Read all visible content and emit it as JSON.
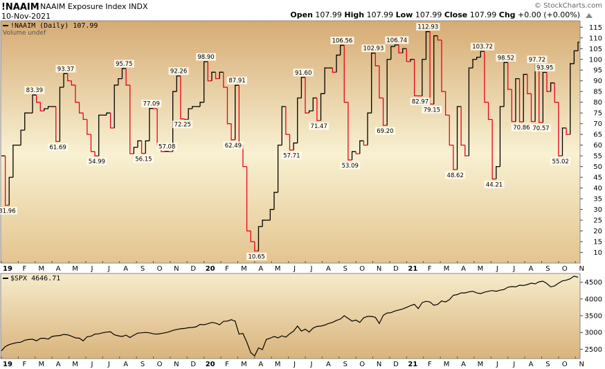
{
  "header": {
    "symbol": "!NAAIM",
    "description": "NAAIM Exposure Index",
    "exchange": "INDX",
    "date": "10-Nov-2021",
    "copyright": "© StockCharts.com",
    "quote": [
      {
        "label": "Open",
        "value": 107.99
      },
      {
        "label": "High",
        "value": 107.99
      },
      {
        "label": "Low",
        "value": 107.99
      },
      {
        "label": "Close",
        "value": 107.99
      },
      {
        "label": "Chg",
        "value": "+0.00 (+0.00%)"
      }
    ]
  },
  "chart_data": [
    {
      "type": "step",
      "volume_note": "Volume undef",
      "up_color": "#000000",
      "down_color": "#e8001c",
      "xtick_labels": [
        "19",
        "F",
        "M",
        "A",
        "M",
        "J",
        "J",
        "A",
        "S",
        "O",
        "N",
        "D",
        "20",
        "F",
        "M",
        "A",
        "M",
        "J",
        "J",
        "A",
        "S",
        "O",
        "N",
        "D",
        "21",
        "F",
        "M",
        "A",
        "M",
        "J",
        "J",
        "A",
        "S",
        "O",
        "N"
      ],
      "ylim": [
        5,
        118
      ],
      "yticks": [
        10,
        15,
        20,
        25,
        30,
        35,
        40,
        45,
        50,
        55,
        60,
        65,
        70,
        75,
        80,
        85,
        90,
        95,
        100,
        105,
        110,
        115
      ],
      "series": [
        {
          "name": "!NAAIM (Daily)",
          "values": [
            55,
            31.96,
            45,
            60,
            60,
            67,
            75,
            75,
            83.39,
            80,
            76,
            77,
            78,
            78,
            61.69,
            87,
            93.37,
            90,
            88,
            80,
            75,
            72,
            65,
            57,
            54.99,
            74,
            74,
            75,
            68,
            88,
            91,
            95.75,
            88,
            56,
            59,
            62,
            56.15,
            62,
            77.09,
            77,
            60,
            57,
            57.08,
            57,
            85,
            92.26,
            72.25,
            72,
            77,
            78,
            78,
            80,
            98.9,
            90,
            94,
            91,
            94,
            87,
            70,
            62.49,
            87.91,
            60,
            50,
            20,
            15,
            10.65,
            22,
            25,
            25,
            30,
            38,
            60,
            78,
            65,
            57.71,
            61,
            82,
            91.6,
            75,
            76,
            82,
            71.47,
            84,
            96,
            96,
            94,
            102,
            106.56,
            80,
            53.09,
            57,
            56,
            62,
            60,
            75,
            102.93,
            97,
            82,
            69.2,
            100,
            106,
            106.74,
            103,
            105,
            99,
            100,
            83,
            82.97,
            100,
            112.93,
            79.15,
            111,
            109,
            85,
            74,
            60,
            48.62,
            78,
            60,
            55,
            96,
            100,
            101,
            103.72,
            80,
            72,
            44.21,
            50,
            78,
            98.52,
            86,
            71,
            91,
            70.86,
            93,
            84,
            71,
            97.72,
            70.57,
            93.95,
            85,
            89,
            80,
            55.02,
            68,
            65,
            98,
            104,
            107.99
          ],
          "value_labels": [
            null,
            "31.96",
            null,
            null,
            null,
            null,
            null,
            null,
            "83.39",
            null,
            null,
            null,
            null,
            null,
            "61.69",
            null,
            "93.37",
            null,
            null,
            null,
            null,
            null,
            null,
            null,
            "54.99",
            null,
            null,
            null,
            null,
            null,
            null,
            "95.75",
            null,
            null,
            null,
            null,
            "56.15",
            null,
            "77.09",
            null,
            null,
            null,
            "57.08",
            null,
            null,
            "92.26",
            "72.25",
            null,
            null,
            null,
            null,
            null,
            "98.90",
            null,
            null,
            null,
            null,
            null,
            null,
            "62.49",
            "87.91",
            null,
            null,
            null,
            null,
            "10.65",
            null,
            null,
            null,
            null,
            null,
            null,
            null,
            null,
            "57.71",
            null,
            null,
            "91.60",
            null,
            null,
            null,
            "71.47",
            null,
            null,
            null,
            null,
            null,
            "106.56",
            null,
            "53.09",
            null,
            null,
            null,
            null,
            null,
            "102.93",
            null,
            null,
            "69.20",
            null,
            null,
            "106.74",
            null,
            null,
            null,
            null,
            null,
            "82.97",
            null,
            "112.93",
            "79.15",
            null,
            null,
            null,
            null,
            null,
            "48.62",
            null,
            null,
            null,
            null,
            null,
            null,
            "103.72",
            null,
            null,
            "44.21",
            null,
            null,
            "98.52",
            null,
            null,
            null,
            "70.86",
            null,
            null,
            null,
            "97.72",
            "70.57",
            "93.95",
            null,
            null,
            null,
            "55.02",
            null,
            null,
            null,
            null,
            null
          ]
        }
      ]
    },
    {
      "type": "line",
      "color": "#000000",
      "xtick_labels": [
        "19",
        "F",
        "M",
        "A",
        "M",
        "J",
        "J",
        "A",
        "S",
        "O",
        "N",
        "D",
        "20",
        "F",
        "M",
        "A",
        "M",
        "J",
        "J",
        "A",
        "S",
        "O",
        "N",
        "D",
        "21",
        "F",
        "M",
        "A",
        "M",
        "J",
        "J",
        "A",
        "S",
        "O",
        "N"
      ],
      "ylim": [
        2220,
        4760
      ],
      "yticks": [
        2500,
        3000,
        3500,
        4000,
        4500
      ],
      "series": [
        {
          "name": "$SPX",
          "values": [
            2450,
            2580,
            2640,
            2670,
            2700,
            2710,
            2770,
            2790,
            2800,
            2750,
            2820,
            2830,
            2800,
            2880,
            2900,
            2910,
            2940,
            2930,
            2890,
            2840,
            2830,
            2750,
            2870,
            2890,
            2950,
            2960,
            2990,
            3010,
            3020,
            2930,
            2900,
            2880,
            2920,
            2850,
            2920,
            2980,
            2990,
            3000,
            2990,
            2960,
            2950,
            2970,
            2990,
            3020,
            3060,
            3090,
            3110,
            3120,
            3140,
            3150,
            3170,
            3240,
            3230,
            3260,
            3300,
            3280,
            3230,
            3330,
            3340,
            3380,
            3340,
            2950,
            2970,
            2710,
            2400,
            2300,
            2540,
            2490,
            2790,
            2830,
            2880,
            2840,
            2900,
            2860,
            2960,
            3040,
            3190,
            3040,
            3100,
            3010,
            3130,
            3180,
            3190,
            3220,
            3270,
            3300,
            3360,
            3400,
            3500,
            3420,
            3340,
            3370,
            3300,
            3440,
            3480,
            3480,
            3450,
            3270,
            3510,
            3580,
            3590,
            3640,
            3670,
            3700,
            3750,
            3800,
            3840,
            3710,
            3890,
            3930,
            3910,
            3810,
            3840,
            3940,
            3910,
            3980,
            4110,
            4130,
            4180,
            4180,
            4210,
            4230,
            4180,
            4160,
            4200,
            4230,
            4250,
            4230,
            4260,
            4280,
            4350,
            4370,
            4360,
            4410,
            4400,
            4430,
            4470,
            4450,
            4510,
            4530,
            4460,
            4360,
            4390,
            4470,
            4540,
            4560,
            4600,
            4680,
            4646.71
          ]
        }
      ]
    }
  ]
}
